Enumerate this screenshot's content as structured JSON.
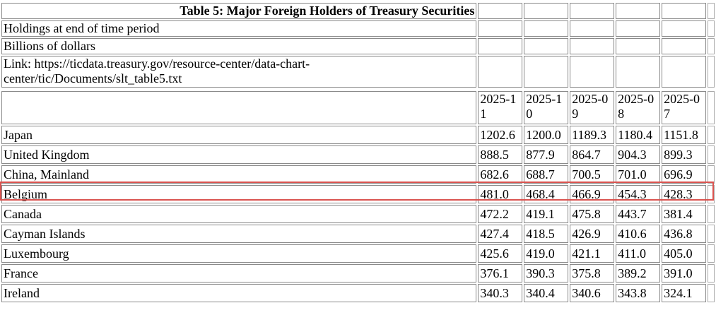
{
  "table": {
    "title": "Table 5: Major Foreign Holders of Treasury Securities",
    "subtitle1": "Holdings at end of time period",
    "subtitle2": "Billions of dollars",
    "link": "Link: https://ticdata.treasury.gov/resource-center/data-chart-center/tic/Documents/slt_table5.txt",
    "columns": [
      "2025-11",
      "2025-10",
      "2025-09",
      "2025-08",
      "2025-07"
    ],
    "rows": [
      {
        "country": "Japan",
        "values": [
          "1202.6",
          "1200.0",
          "1189.3",
          "1180.4",
          "1151.8"
        ]
      },
      {
        "country": "United Kingdom",
        "values": [
          "888.5",
          "877.9",
          "864.7",
          "904.3",
          "899.3"
        ]
      },
      {
        "country": "China, Mainland",
        "values": [
          "682.6",
          "688.7",
          "700.5",
          "701.0",
          "696.9"
        ]
      },
      {
        "country": "Belgium",
        "values": [
          "481.0",
          "468.4",
          "466.9",
          "454.3",
          "428.3"
        ]
      },
      {
        "country": "Canada",
        "values": [
          "472.2",
          "419.1",
          "475.8",
          "443.7",
          "381.4"
        ]
      },
      {
        "country": "Cayman Islands",
        "values": [
          "427.4",
          "418.5",
          "426.9",
          "410.6",
          "436.8"
        ]
      },
      {
        "country": "Luxembourg",
        "values": [
          "425.6",
          "419.0",
          "421.1",
          "411.0",
          "405.0"
        ]
      },
      {
        "country": "France",
        "values": [
          "376.1",
          "390.3",
          "375.8",
          "389.2",
          "391.0"
        ]
      },
      {
        "country": "Ireland",
        "values": [
          "340.3",
          "340.4",
          "340.6",
          "343.8",
          "324.1"
        ]
      }
    ],
    "highlight_color": "#d9534f"
  }
}
